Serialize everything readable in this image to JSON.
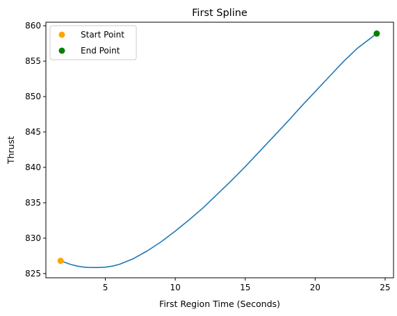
{
  "chart_data": {
    "type": "line",
    "title": "First Spline",
    "xlabel": "First Region Time (Seconds)",
    "ylabel": "Thrust",
    "xlim": [
      0.75,
      25.6
    ],
    "ylim": [
      824.4,
      860.5
    ],
    "xticks": [
      5,
      10,
      15,
      20,
      25
    ],
    "yticks": [
      825,
      830,
      835,
      840,
      845,
      850,
      855,
      860
    ],
    "grid": false,
    "legend_position": "top-left",
    "series": [
      {
        "kind": "line",
        "color": "#1f77b4",
        "x": [
          1.8,
          2.5,
          3.0,
          3.5,
          4.0,
          4.5,
          5.0,
          5.5,
          6.0,
          7.0,
          8.0,
          9.0,
          10.0,
          11.0,
          12.0,
          13.0,
          14.0,
          15.0,
          16.0,
          17.0,
          18.0,
          19.0,
          20.0,
          21.0,
          22.0,
          23.0,
          24.0,
          24.4
        ],
        "y": [
          826.8,
          826.3,
          826.05,
          825.9,
          825.85,
          825.85,
          825.9,
          826.05,
          826.3,
          827.1,
          828.2,
          829.5,
          831.0,
          832.6,
          834.3,
          836.2,
          838.1,
          840.1,
          842.2,
          844.3,
          846.4,
          848.6,
          850.7,
          852.8,
          854.9,
          856.8,
          858.3,
          858.9
        ]
      },
      {
        "kind": "point",
        "name": "Start Point",
        "color": "#ffa500",
        "x": [
          1.8
        ],
        "y": [
          826.8
        ]
      },
      {
        "kind": "point",
        "name": "End Point",
        "color": "#008000",
        "x": [
          24.4
        ],
        "y": [
          858.9
        ]
      }
    ]
  }
}
